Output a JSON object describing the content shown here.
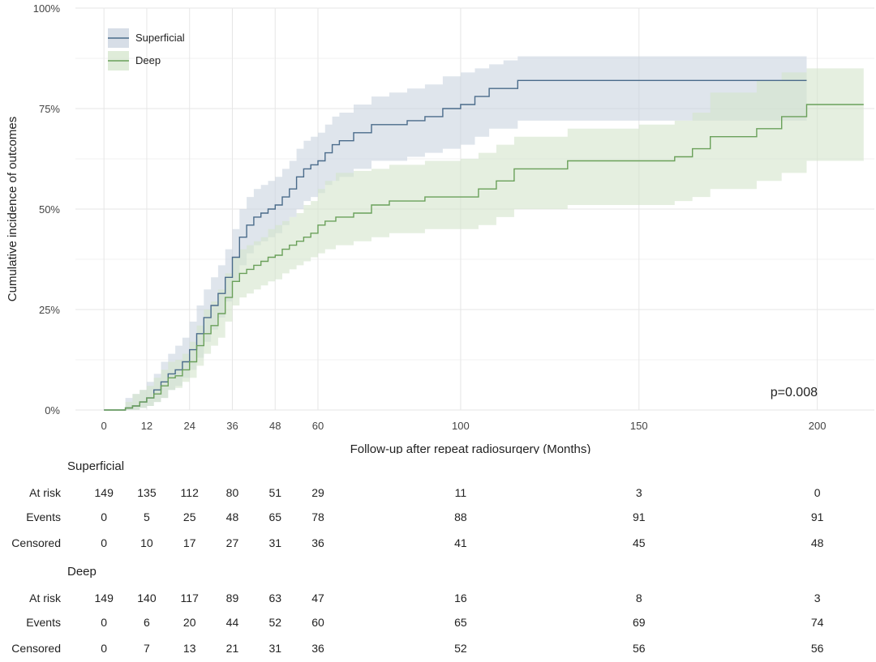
{
  "chart_data": {
    "type": "line",
    "subtype": "step",
    "title": "",
    "xlabel": "Follow-up after repeat radiosurgery (Months)",
    "ylabel": "Cumulative incidence of outcomes",
    "xlim": [
      -8,
      216
    ],
    "ylim": [
      0,
      100
    ],
    "x_ticks": [
      0,
      12,
      24,
      36,
      48,
      60,
      100,
      150,
      200
    ],
    "y_ticks": [
      0,
      25,
      50,
      75,
      100
    ],
    "y_tick_labels": [
      "0%",
      "25%",
      "50%",
      "75%",
      "100%"
    ],
    "grid": true,
    "legend_position": "top-left",
    "annotation": "p=0.008",
    "series": [
      {
        "name": "Superficial",
        "color": "#4a6b8a",
        "band_color": "#c9d3df",
        "x": [
          0,
          6,
          8,
          10,
          12,
          14,
          16,
          18,
          20,
          22,
          24,
          26,
          28,
          30,
          32,
          34,
          36,
          38,
          40,
          42,
          44,
          46,
          48,
          50,
          52,
          54,
          56,
          58,
          60,
          62,
          64,
          66,
          70,
          75,
          80,
          85,
          90,
          95,
          100,
          104,
          108,
          112,
          116,
          130,
          150,
          170,
          197
        ],
        "y": [
          0,
          0.5,
          1,
          2,
          3,
          5,
          7,
          9,
          10,
          12,
          15,
          19,
          23,
          26,
          29,
          33,
          38,
          43,
          46,
          48,
          49,
          50,
          51,
          53,
          55,
          58,
          60,
          61,
          62,
          64,
          66,
          67,
          69,
          71,
          71,
          72,
          73,
          75,
          76,
          78,
          80,
          80,
          82,
          82,
          82,
          82,
          82
        ],
        "lower": [
          0,
          0,
          0,
          0.5,
          1,
          2,
          3,
          5,
          6,
          8,
          10,
          13,
          17,
          20,
          23,
          27,
          32,
          36,
          39,
          41,
          42,
          43,
          44,
          46,
          48,
          50,
          52,
          53,
          54,
          56,
          57,
          58,
          60,
          62,
          62,
          63,
          64,
          65,
          66,
          68,
          70,
          70,
          72,
          72,
          72,
          72,
          72
        ],
        "upper": [
          0,
          3,
          4,
          5,
          7,
          9,
          12,
          14,
          16,
          18,
          22,
          26,
          30,
          33,
          36,
          40,
          45,
          50,
          53,
          55,
          56,
          57,
          58,
          60,
          62,
          65,
          67,
          68,
          69,
          71,
          73,
          74,
          76,
          78,
          79,
          80,
          81,
          83,
          84,
          85,
          86,
          87,
          88,
          88,
          88,
          88,
          88
        ]
      },
      {
        "name": "Deep",
        "color": "#6aa05a",
        "band_color": "#d4e5cc",
        "x": [
          0,
          6,
          8,
          10,
          12,
          14,
          16,
          18,
          20,
          22,
          24,
          26,
          28,
          30,
          32,
          34,
          36,
          38,
          40,
          42,
          44,
          46,
          48,
          50,
          52,
          54,
          56,
          58,
          60,
          62,
          65,
          70,
          75,
          80,
          90,
          100,
          105,
          110,
          115,
          130,
          150,
          160,
          165,
          170,
          183,
          190,
          197,
          213
        ],
        "y": [
          0,
          0.5,
          1,
          2,
          3,
          4,
          6,
          8,
          8.5,
          10,
          12,
          16,
          19,
          21,
          24,
          28,
          32,
          34,
          35,
          36,
          37,
          38,
          38.5,
          40,
          41,
          42,
          43,
          44,
          46,
          47,
          48,
          49,
          51,
          52,
          53,
          53,
          55,
          57,
          60,
          62,
          62,
          63,
          65,
          68,
          70,
          73,
          76,
          76
        ],
        "lower": [
          0,
          0,
          0,
          0.5,
          1,
          2,
          3,
          5,
          5.5,
          7,
          8,
          11,
          14,
          16,
          18,
          22,
          26,
          28,
          29,
          30,
          31,
          32,
          32.5,
          34,
          35,
          36,
          37,
          38,
          39,
          40,
          41,
          42,
          43,
          44,
          45,
          45,
          46,
          48,
          50,
          51,
          51,
          52,
          53,
          55,
          57,
          59,
          62,
          62
        ],
        "upper": [
          0,
          2,
          4,
          5,
          6,
          8,
          10,
          12,
          12.5,
          14,
          17,
          21,
          25,
          27,
          30,
          34,
          38,
          40,
          41,
          42,
          43,
          45,
          46,
          47,
          48,
          49,
          51,
          52,
          55,
          57,
          59,
          59.5,
          60,
          61,
          62,
          62.5,
          64,
          66,
          68,
          70,
          71,
          72,
          74,
          79,
          82,
          84,
          85,
          85
        ]
      }
    ]
  },
  "risk_table": {
    "times": [
      0,
      12,
      24,
      36,
      48,
      60,
      100,
      150,
      200
    ],
    "row_labels": [
      "At risk",
      "Events",
      "Censored"
    ],
    "groups": [
      {
        "name": "Superficial",
        "at_risk": [
          "149",
          "135",
          "112",
          "80",
          "51",
          "29",
          "11",
          "3",
          "0"
        ],
        "events": [
          "0",
          "5",
          "25",
          "48",
          "65",
          "78",
          "88",
          "91",
          "91"
        ],
        "censored": [
          "0",
          "10",
          "17",
          "27",
          "31",
          "36",
          "41",
          "45",
          "48"
        ]
      },
      {
        "name": "Deep",
        "at_risk": [
          "149",
          "140",
          "117",
          "89",
          "63",
          "47",
          "16",
          "8",
          "3"
        ],
        "events": [
          "0",
          "6",
          "20",
          "44",
          "52",
          "60",
          "65",
          "69",
          "74"
        ],
        "censored": [
          "0",
          "7",
          "13",
          "21",
          "31",
          "36",
          "52",
          "56",
          "56"
        ]
      }
    ]
  }
}
